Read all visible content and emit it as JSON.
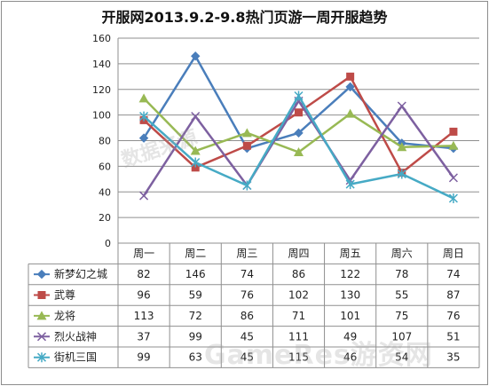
{
  "title": "开服网2013.9.2-9.8热门页游一周开服趋势",
  "watermarks": [
    "数据来源",
    "GameRes游资网"
  ],
  "chart_data": {
    "type": "line",
    "title": "开服网2013.9.2-9.8热门页游一周开服趋势",
    "categories": [
      "周一",
      "周二",
      "周三",
      "周四",
      "周五",
      "周六",
      "周日"
    ],
    "ylim": [
      0,
      160
    ],
    "yticks": [
      0,
      20,
      40,
      60,
      80,
      100,
      120,
      140,
      160
    ],
    "grid": true,
    "legend": "data-table-left",
    "series": [
      {
        "name": "新梦幻之城",
        "color": "#4a7ebb",
        "marker": "diamond",
        "values": [
          82,
          146,
          74,
          86,
          122,
          78,
          74
        ]
      },
      {
        "name": "武尊",
        "color": "#be4b48",
        "marker": "square",
        "values": [
          96,
          59,
          76,
          102,
          130,
          55,
          87
        ]
      },
      {
        "name": "龙将",
        "color": "#98b954",
        "marker": "triangle",
        "values": [
          113,
          72,
          86,
          71,
          101,
          75,
          76
        ]
      },
      {
        "name": "烈火战神",
        "color": "#7d60a0",
        "marker": "x",
        "values": [
          37,
          99,
          45,
          111,
          49,
          107,
          51
        ]
      },
      {
        "name": "街机三国",
        "color": "#46aac5",
        "marker": "star",
        "values": [
          99,
          63,
          45,
          115,
          46,
          54,
          35
        ]
      }
    ]
  }
}
